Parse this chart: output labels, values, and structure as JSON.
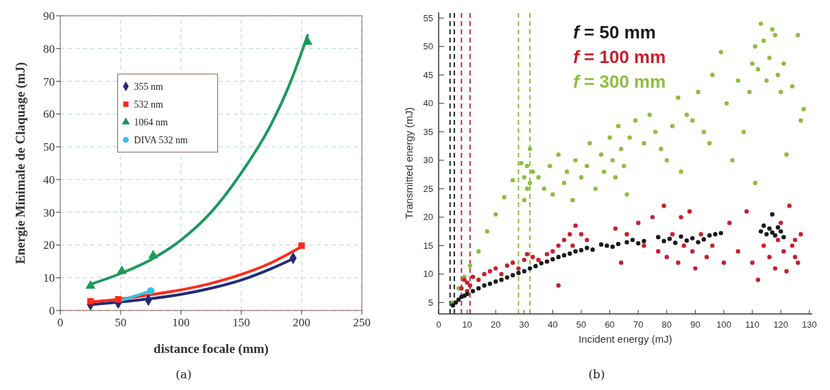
{
  "chart_data": [
    {
      "type": "scatter",
      "xlabel": "distance focale (mm)",
      "ylabel": "Energie Minimale de Claquage (mJ)",
      "xlim": [
        0,
        250
      ],
      "ylim": [
        0,
        90
      ],
      "xticks": [
        0,
        50,
        100,
        150,
        200,
        250
      ],
      "yticks": [
        0,
        10,
        20,
        30,
        40,
        50,
        60,
        70,
        80,
        90
      ],
      "grid": true,
      "legend": "top left",
      "annotations": [
        "(a)"
      ],
      "series": [
        {
          "name": "355 nm",
          "color": "#1f2a7a",
          "marker": "diamond",
          "x": [
            25,
            48,
            73,
            193
          ],
          "values": [
            1.8,
            2.3,
            3.2,
            16
          ]
        },
        {
          "name": "532 nm",
          "color": "#ff2a1a",
          "marker": "square",
          "x": [
            25,
            48,
            200
          ],
          "values": [
            2.8,
            3.4,
            19.8
          ]
        },
        {
          "name": "1064 nm",
          "color": "#1a9a5a",
          "marker": "triangle",
          "x": [
            25,
            51,
            77,
            205
          ],
          "values": [
            7.5,
            12,
            16.8,
            82
          ]
        },
        {
          "name": "DIVA 532 nm",
          "color": "#33c1ee",
          "marker": "circle",
          "x": [
            75
          ],
          "values": [
            6
          ]
        },
        {
          "type": "line",
          "color": "#1f2a7a",
          "marker": "none",
          "x": [
            25,
            50,
            75,
            100,
            125,
            150,
            175,
            193
          ],
          "values": [
            1.8,
            2.6,
            3.6,
            4.9,
            6.8,
            9.3,
            12.8,
            15.8
          ]
        },
        {
          "type": "line",
          "color": "#ff2a1a",
          "marker": "none",
          "x": [
            25,
            50,
            75,
            100,
            125,
            150,
            175,
            200
          ],
          "values": [
            2.6,
            3.5,
            4.8,
            6.3,
            8.3,
            11,
            14.6,
            19.5
          ]
        },
        {
          "type": "line",
          "color": "#1a9a5a",
          "marker": "none",
          "x": [
            25,
            50,
            75,
            100,
            125,
            150,
            175,
            190,
            205
          ],
          "values": [
            8,
            11.3,
            15.5,
            21.5,
            30,
            42,
            57,
            69,
            84
          ]
        },
        {
          "type": "line",
          "color": "#33c1ee",
          "marker": "none",
          "x": [
            50,
            75
          ],
          "values": [
            3,
            6
          ]
        }
      ]
    },
    {
      "type": "scatter",
      "xlabel": "Incident energy (mJ)",
      "ylabel": "Transmitted energy (mJ)",
      "xlim": [
        0,
        131
      ],
      "ylim": [
        3,
        56
      ],
      "xticks": [
        0,
        10,
        20,
        30,
        40,
        50,
        60,
        70,
        80,
        90,
        100,
        110,
        120,
        130
      ],
      "yticks": [
        5,
        10,
        15,
        20,
        25,
        30,
        35,
        40,
        45,
        50,
        55
      ],
      "grid": false,
      "marker": "circle",
      "annotations": [
        "(b)"
      ],
      "ref_lines": [
        {
          "axis": "x",
          "value": 4,
          "color": "#222222",
          "line_style": "dashed"
        },
        {
          "axis": "x",
          "value": 5.5,
          "color": "#222222",
          "line_style": "dashed"
        },
        {
          "axis": "x",
          "value": 8,
          "color": "#c0303a",
          "line_style": "dashed"
        },
        {
          "axis": "x",
          "value": 11,
          "color": "#c0303a",
          "line_style": "dashed"
        },
        {
          "axis": "x",
          "value": 28,
          "color": "#8cbf3f",
          "line_style": "dashed"
        },
        {
          "axis": "x",
          "value": 32,
          "color": "#8cbf3f",
          "line_style": "dashed"
        }
      ],
      "series": [
        {
          "name": "f = 300 mm",
          "color": "#8cbf3f",
          "x": [
            5,
            7,
            9,
            11,
            14,
            17,
            20,
            23,
            26,
            29,
            32,
            30,
            31,
            30,
            31,
            32,
            33,
            35,
            37,
            39,
            40,
            42,
            44,
            45,
            47,
            48,
            50,
            52,
            53,
            55,
            57,
            58,
            60,
            61,
            62,
            63,
            64,
            65,
            66,
            67,
            69,
            72,
            74,
            76,
            78,
            80,
            82,
            84,
            85,
            87,
            89,
            91,
            93,
            95,
            96,
            99,
            101,
            103,
            105,
            107,
            109,
            110,
            111,
            112,
            113,
            114,
            115,
            116,
            117,
            118,
            119,
            120,
            121,
            122,
            124,
            126,
            127,
            128,
            111
          ],
          "values": [
            5,
            7.5,
            9.5,
            11.5,
            14,
            17.5,
            20.5,
            23.5,
            26.5,
            29.5,
            32,
            27,
            25,
            23,
            29,
            26,
            28,
            27,
            25,
            29,
            24,
            31,
            26,
            28,
            23,
            30,
            27,
            29,
            33,
            25,
            31,
            28,
            34,
            30,
            27,
            36,
            32,
            29,
            24,
            34,
            37,
            33,
            38,
            35,
            32,
            30,
            36,
            41,
            28,
            38,
            37,
            42,
            35,
            33,
            45,
            49,
            40,
            30,
            44,
            35,
            42,
            47,
            50,
            46,
            54,
            51,
            44,
            48,
            53,
            52,
            45,
            42,
            47,
            31,
            43,
            52,
            37,
            39,
            26
          ]
        },
        {
          "name": "f = 100 mm",
          "color": "#c8202e",
          "x": [
            8,
            9,
            10,
            10,
            11,
            12,
            14,
            16,
            18,
            20,
            22,
            24,
            26,
            28,
            30,
            31,
            33,
            35,
            38,
            40,
            42,
            42,
            44,
            46,
            47,
            48,
            50,
            52,
            62,
            64,
            66,
            70,
            72,
            75,
            77,
            79,
            80,
            82,
            84,
            85,
            86,
            88,
            89,
            90,
            92,
            94,
            96,
            100,
            102,
            105,
            108,
            110,
            112,
            114,
            116,
            118,
            119,
            120,
            121,
            122,
            123,
            124,
            125,
            126,
            127,
            125
          ],
          "values": [
            7.5,
            9,
            8.5,
            7,
            8,
            9.5,
            9,
            10,
            10.5,
            11,
            10,
            11.5,
            12,
            11,
            12.5,
            13.5,
            13,
            12.5,
            13.5,
            14,
            15,
            8,
            16,
            17,
            15,
            18.5,
            17,
            16,
            18,
            12,
            17,
            19,
            15,
            20,
            14,
            22,
            13,
            17,
            12,
            20,
            15,
            21,
            14,
            11,
            17,
            13,
            15,
            12,
            19,
            14,
            21,
            12,
            9,
            15,
            13,
            11,
            16,
            19,
            14,
            10.5,
            22,
            15,
            13,
            12,
            17,
            16
          ]
        },
        {
          "name": "f = 50 mm",
          "color": "#1a1a1a",
          "x": [
            5,
            6,
            7,
            8,
            9,
            10,
            12,
            14,
            16,
            18,
            20,
            22,
            24,
            26,
            28,
            30,
            32,
            34,
            36,
            38,
            40,
            42,
            44,
            46,
            48,
            50,
            52,
            54,
            57,
            59,
            61,
            63,
            66,
            68,
            70,
            72,
            77,
            79,
            81,
            83,
            85,
            87,
            89,
            91,
            93,
            95,
            97,
            99,
            113,
            114,
            115,
            116,
            117,
            117,
            118,
            119,
            120,
            121
          ],
          "values": [
            4.5,
            5,
            5.5,
            6,
            6.2,
            6.5,
            7,
            7.5,
            8,
            8.3,
            8.7,
            9,
            9.4,
            9.8,
            10.2,
            10.5,
            11,
            11.4,
            11.9,
            12.2,
            12.6,
            13,
            13.3,
            13.6,
            14,
            14.2,
            14.6,
            14.3,
            15.2,
            15,
            14.8,
            15.3,
            15.6,
            16,
            15.4,
            15.8,
            16.5,
            15.8,
            16.2,
            15.5,
            16.6,
            15.9,
            16.3,
            15.6,
            16.1,
            16.8,
            17,
            17.2,
            17.5,
            18.5,
            17,
            18,
            17.3,
            20.5,
            16.8,
            18.2,
            17.5,
            16.5
          ]
        }
      ]
    }
  ]
}
